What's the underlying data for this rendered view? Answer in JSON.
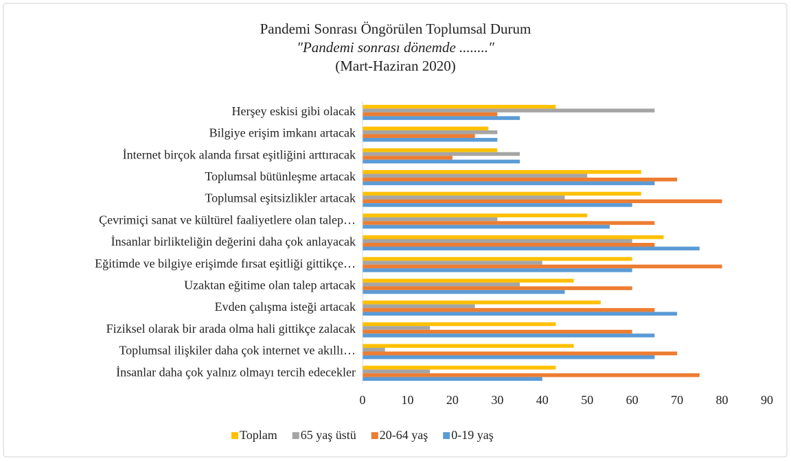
{
  "chart_data": {
    "type": "hbar",
    "title": "Pandemi Sonrası Öngörülen Toplumsal Durum",
    "subtitle": "\"Pandemi sonrası dönemde ........\"",
    "period": "(Mart-Haziran 2020)",
    "categories": [
      "Herşey eskisi gibi olacak",
      "Bilgiye erişim imkanı artacak",
      "İnternet birçok alanda fırsat eşitliğini arttıracak",
      "Toplumsal bütünleşme artacak",
      "Toplumsal eşitsizlikler artacak",
      "Çevrimiçi sanat ve kültürel faaliyetlere olan talep…",
      "İnsanlar birlikteliğin değerini daha çok anlayacak",
      "Eğitimde ve bilgiye erişimde fırsat eşitliği gittikçe…",
      "Uzaktan eğitime olan talep artacak",
      "Evden çalışma isteği artacak",
      "Fiziksel olarak bir arada olma hali gittikçe zalacak",
      "Toplumsal ilişkiler daha çok internet ve akıllı…",
      "İnsanlar daha çok yalnız olmayı tercih edecekler"
    ],
    "series": [
      {
        "name": "Toplam",
        "color": "#ffc000",
        "values": [
          43,
          28,
          30,
          62,
          62,
          50,
          67,
          60,
          47,
          53,
          43,
          47,
          43
        ]
      },
      {
        "name": "65 yaş üstü",
        "color": "#a5a5a5",
        "values": [
          65,
          30,
          35,
          50,
          45,
          30,
          60,
          40,
          35,
          25,
          15,
          5,
          15
        ]
      },
      {
        "name": "20-64 yaş",
        "color": "#ed7d31",
        "values": [
          30,
          25,
          20,
          70,
          80,
          65,
          65,
          80,
          60,
          65,
          60,
          70,
          75
        ]
      },
      {
        "name": "0-19 yaş",
        "color": "#5b9bd5",
        "values": [
          35,
          30,
          35,
          65,
          60,
          55,
          75,
          60,
          45,
          70,
          65,
          65,
          40
        ]
      }
    ],
    "xlim": [
      0,
      90
    ],
    "xticks": [
      0,
      10,
      20,
      30,
      40,
      50,
      60,
      70,
      80,
      90
    ],
    "grid": false,
    "legend": "bottom"
  }
}
